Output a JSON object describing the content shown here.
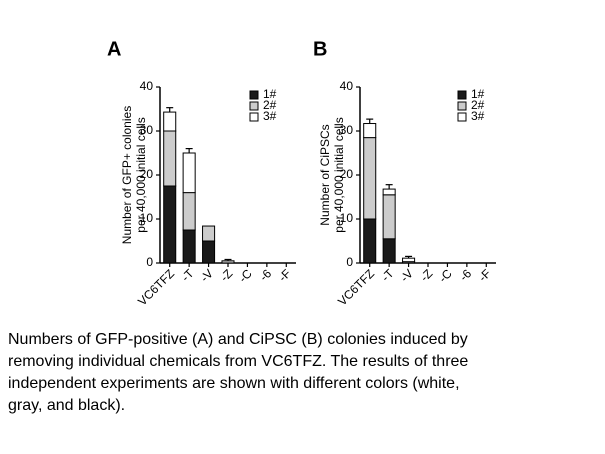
{
  "charts": [
    {
      "type": "bar",
      "stacked": true,
      "title": "A",
      "ylabel": [
        "Number of GFP+ colonies",
        "per 40,000 initial cells"
      ],
      "categories": [
        "VC6TFZ",
        "-T",
        "-V",
        "-Z",
        "-C",
        "-6",
        "-F"
      ],
      "ylim": [
        0,
        40
      ],
      "yticks": [
        0,
        10,
        20,
        30,
        40
      ],
      "legend": "upper right",
      "series": [
        {
          "name": "1#",
          "color": "#1a1a1a",
          "values": [
            17.5,
            7.5,
            5,
            0,
            0,
            0,
            0
          ],
          "errors": [
            4,
            4.5,
            0.8,
            null,
            null,
            null,
            null
          ]
        },
        {
          "name": "2#",
          "color": "#cccccc",
          "values": [
            12.5,
            8.5,
            3.4,
            0.5,
            0,
            0,
            0
          ],
          "errors": [
            null,
            null,
            null,
            0.3,
            null,
            null,
            null
          ]
        },
        {
          "name": "3#",
          "color": "#ffffff",
          "values": [
            4.3,
            9,
            0,
            0,
            0,
            0,
            0
          ],
          "errors": [
            1,
            1,
            null,
            null,
            null,
            null,
            null
          ]
        }
      ]
    },
    {
      "type": "bar",
      "stacked": true,
      "title": "B",
      "ylabel": [
        "Number of CiPSCs",
        "per 40,000 initial cells"
      ],
      "categories": [
        "VC6TFZ",
        "-T",
        "-V",
        "-Z",
        "-C",
        "-6",
        "-F"
      ],
      "ylim": [
        0,
        40
      ],
      "yticks": [
        0,
        10,
        20,
        30,
        40
      ],
      "legend": "upper right",
      "series": [
        {
          "name": "1#",
          "color": "#1a1a1a",
          "values": [
            10,
            5.5,
            0,
            0,
            0,
            0,
            0
          ],
          "errors": [
            1,
            3,
            null,
            null,
            null,
            null,
            null
          ]
        },
        {
          "name": "2#",
          "color": "#cccccc",
          "values": [
            18.5,
            10,
            0.3,
            0,
            0,
            0,
            0
          ],
          "errors": [
            null,
            null,
            null,
            null,
            null,
            null,
            null
          ]
        },
        {
          "name": "3#",
          "color": "#ffffff",
          "values": [
            3.2,
            1.3,
            0.8,
            0,
            0,
            0,
            0
          ],
          "errors": [
            1,
            1,
            0.4,
            null,
            null,
            null,
            null
          ]
        }
      ]
    }
  ],
  "caption": [
    "Numbers of GFP-positive (A) and CiPSC (B) colonies induced by",
    "removing individual chemicals from VC6TFZ. The results of three",
    "independent experiments are shown with different colors (white,",
    "gray, and black)."
  ]
}
